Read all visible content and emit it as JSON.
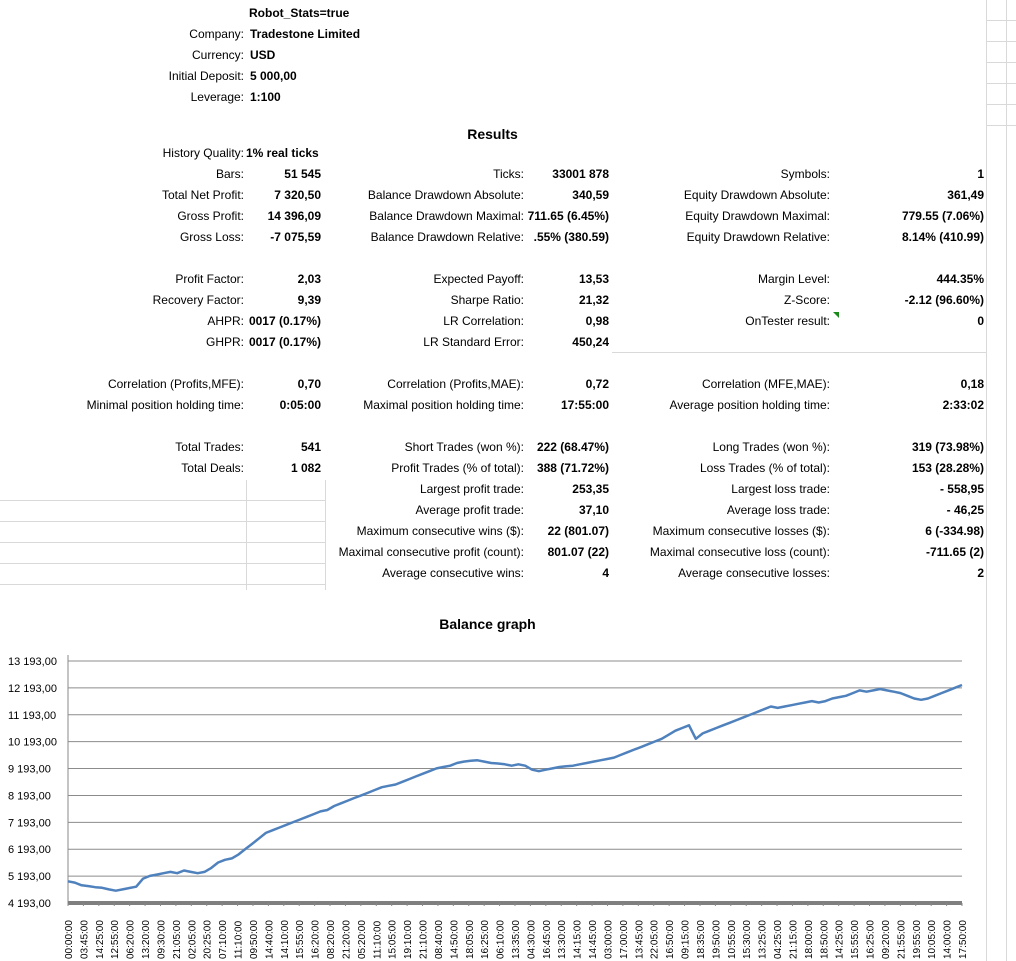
{
  "header": {
    "robot_stats": "Robot_Stats=true",
    "company_label": "Company:",
    "company_value": "Tradestone Limited",
    "currency_label": "Currency:",
    "currency_value": "USD",
    "deposit_label": "Initial Deposit:",
    "deposit_value": "5 000,00",
    "leverage_label": "Leverage:",
    "leverage_value": "1:100"
  },
  "results": {
    "title": "Results",
    "history_quality_label": "History Quality:",
    "history_quality_value": "1% real ticks",
    "col1": [
      {
        "label": "Bars:",
        "value": "51 545"
      },
      {
        "label": "Total Net Profit:",
        "value": "7 320,50"
      },
      {
        "label": "Gross Profit:",
        "value": "14 396,09"
      },
      {
        "label": "Gross Loss:",
        "value": "-7 075,59"
      },
      {
        "label": "Profit Factor:",
        "value": "2,03"
      },
      {
        "label": "Recovery Factor:",
        "value": "9,39"
      },
      {
        "label": "AHPR:",
        "value": "0017 (0.17%)"
      },
      {
        "label": "GHPR:",
        "value": "0017 (0.17%)"
      },
      {
        "label": "Correlation (Profits,MFE):",
        "value": "0,70"
      },
      {
        "label": "Minimal position holding time:",
        "value": "0:05:00"
      },
      {
        "label": "Total Trades:",
        "value": "541"
      },
      {
        "label": "Total Deals:",
        "value": "1 082"
      }
    ],
    "col2": [
      {
        "label": "Ticks:",
        "value": "33001 878"
      },
      {
        "label": "Balance Drawdown Absolute:",
        "value": "340,59"
      },
      {
        "label": "Balance Drawdown Maximal:",
        "value": "711.65 (6.45%)"
      },
      {
        "label": "Balance Drawdown Relative:",
        "value": ".55% (380.59)"
      },
      {
        "label": "Expected Payoff:",
        "value": "13,53"
      },
      {
        "label": "Sharpe Ratio:",
        "value": "21,32"
      },
      {
        "label": "LR Correlation:",
        "value": "0,98"
      },
      {
        "label": "LR Standard Error:",
        "value": "450,24"
      },
      {
        "label": "Correlation (Profits,MAE):",
        "value": "0,72"
      },
      {
        "label": "Maximal position holding time:",
        "value": "17:55:00"
      },
      {
        "label": "Short Trades (won %):",
        "value": "222 (68.47%)"
      },
      {
        "label": "Profit Trades (% of total):",
        "value": "388 (71.72%)"
      },
      {
        "label": "Largest profit trade:",
        "value": "253,35"
      },
      {
        "label": "Average profit trade:",
        "value": "37,10"
      },
      {
        "label": "Maximum consecutive wins ($):",
        "value": "22 (801.07)"
      },
      {
        "label": "Maximal consecutive profit (count):",
        "value": "801.07 (22)"
      },
      {
        "label": "Average consecutive wins:",
        "value": "4"
      }
    ],
    "col3": [
      {
        "label": "Symbols:",
        "value": "1"
      },
      {
        "label": "Equity Drawdown Absolute:",
        "value": "361,49"
      },
      {
        "label": "Equity Drawdown Maximal:",
        "value": "779.55 (7.06%)"
      },
      {
        "label": "Equity Drawdown Relative:",
        "value": "8.14% (410.99)"
      },
      {
        "label": "Margin Level:",
        "value": "444.35%"
      },
      {
        "label": "Z-Score:",
        "value": "-2.12 (96.60%)"
      },
      {
        "label": "OnTester result:",
        "value": "0"
      },
      {
        "label": "Correlation (MFE,MAE):",
        "value": "0,18"
      },
      {
        "label": "Average position holding time:",
        "value": "2:33:02"
      },
      {
        "label": "Long Trades (won %):",
        "value": "319 (73.98%)"
      },
      {
        "label": "Loss Trades (% of total):",
        "value": "153 (28.28%)"
      },
      {
        "label": "Largest loss trade:",
        "value": "- 558,95"
      },
      {
        "label": "Average loss trade:",
        "value": "- 46,25"
      },
      {
        "label": "Maximum consecutive losses ($):",
        "value": "6 (-334.98)"
      },
      {
        "label": "Maximal consecutive loss (count):",
        "value": "-711.65 (2)"
      },
      {
        "label": "Average consecutive losses:",
        "value": "2"
      }
    ]
  },
  "chart_data": {
    "type": "line",
    "title": "Balance graph",
    "ylim": [
      4193,
      13193
    ],
    "yticks": [
      "13 193,00",
      "12 193,00",
      "11 193,00",
      "10 193,00",
      "9 193,00",
      "8 193,00",
      "7 193,00",
      "6 193,00",
      "5 193,00",
      "4 193,00"
    ],
    "ytick_values": [
      13193,
      12193,
      11193,
      10193,
      9193,
      8193,
      7193,
      6193,
      5193,
      4193
    ],
    "xticks": [
      "00:00:00",
      "03:45:00",
      "14:25:00",
      "12:55:00",
      "06:20:00",
      "13:20:00",
      "09:30:00",
      "21:05:00",
      "02:05:00",
      "20:25:00",
      "07:10:00",
      "11:10:00",
      "09:50:00",
      "14:40:00",
      "14:10:00",
      "15:55:00",
      "16:20:00",
      "08:20:00",
      "21:20:00",
      "05:20:00",
      "11:10:00",
      "15:05:00",
      "19:10:00",
      "21:10:00",
      "08:40:00",
      "14:50:00",
      "18:05:00",
      "16:25:00",
      "06:10:00",
      "13:35:00",
      "04:30:00",
      "16:45:00",
      "13:30:00",
      "14:15:00",
      "14:45:00",
      "03:00:00",
      "17:00:00",
      "13:45:00",
      "22:05:00",
      "16:50:00",
      "09:15:00",
      "18:35:00",
      "19:50:00",
      "10:55:00",
      "15:30:00",
      "13:25:00",
      "04:25:00",
      "21:15:00",
      "18:00:00",
      "18:50:00",
      "14:25:00",
      "15:55:00",
      "16:25:00",
      "09:20:00",
      "21:55:00",
      "19:55:00",
      "10:05:00",
      "14:00:00",
      "17:50:00"
    ],
    "series": [
      {
        "color": "#4f81bd",
        "values": [
          5000,
          4950,
          4850,
          4820,
          4780,
          4760,
          4700,
          4650,
          4700,
          4750,
          4800,
          5100,
          5200,
          5250,
          5300,
          5350,
          5300,
          5400,
          5350,
          5300,
          5350,
          5500,
          5700,
          5800,
          5850,
          6000,
          6200,
          6400,
          6600,
          6800,
          6900,
          7000,
          7100,
          7200,
          7300,
          7400,
          7500,
          7600,
          7650,
          7800,
          7900,
          8000,
          8100,
          8200,
          8300,
          8400,
          8500,
          8550,
          8600,
          8700,
          8800,
          8900,
          9000,
          9100,
          9200,
          9250,
          9300,
          9400,
          9450,
          9480,
          9500,
          9450,
          9400,
          9380,
          9350,
          9300,
          9350,
          9300,
          9150,
          9100,
          9150,
          9200,
          9250,
          9280,
          9300,
          9350,
          9400,
          9450,
          9500,
          9550,
          9600,
          9700,
          9800,
          9900,
          10000,
          10100,
          10200,
          10300,
          10450,
          10600,
          10700,
          10800,
          10300,
          10500,
          10600,
          10700,
          10800,
          10900,
          11000,
          11100,
          11200,
          11300,
          11400,
          11500,
          11450,
          11500,
          11550,
          11600,
          11650,
          11700,
          11650,
          11700,
          11800,
          11850,
          11900,
          12000,
          12100,
          12050,
          12100,
          12150,
          12100,
          12050,
          12000,
          11900,
          11800,
          11750,
          11800,
          11900,
          12000,
          12100,
          12200,
          12300
        ]
      }
    ]
  }
}
